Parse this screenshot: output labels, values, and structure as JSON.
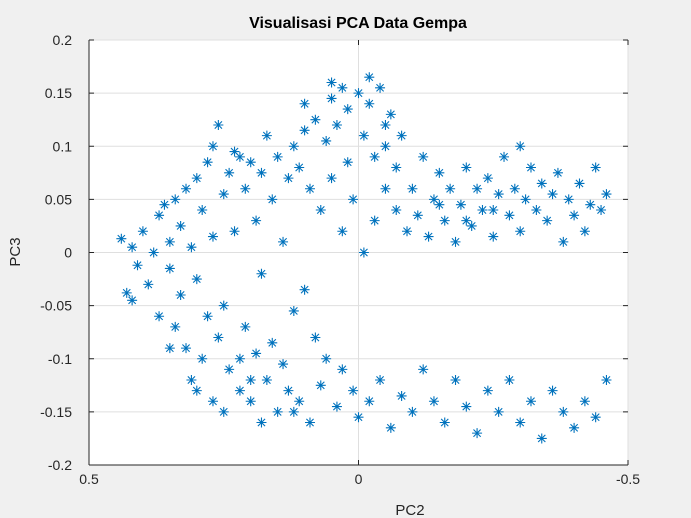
{
  "chart_data": {
    "type": "scatter",
    "title": "Visualisasi PCA Data Gempa",
    "xlabel": "PC2",
    "ylabel": "PC3",
    "xlim": [
      0.5,
      -0.5
    ],
    "x_reversed": true,
    "ylim": [
      -0.2,
      0.2
    ],
    "x_ticks": [
      0.5,
      0,
      -0.5
    ],
    "x_tick_labels": [
      "0.5",
      "0",
      "-0.5"
    ],
    "y_ticks": [
      -0.2,
      -0.15,
      -0.1,
      -0.05,
      0,
      0.05,
      0.1,
      0.15,
      0.2
    ],
    "y_tick_labels": [
      "-0.2",
      "-0.15",
      "-0.1",
      "-0.05",
      "0",
      "0.05",
      "0.1",
      "0.15",
      "0.2"
    ],
    "grid": true,
    "marker": "asterisk",
    "color": "#0072BD",
    "series": [
      {
        "points": [
          [
            0.44,
            0.013
          ],
          [
            0.43,
            -0.038
          ],
          [
            0.42,
            0.005
          ],
          [
            0.42,
            -0.045
          ],
          [
            0.41,
            -0.012
          ],
          [
            0.4,
            0.02
          ],
          [
            0.39,
            -0.03
          ],
          [
            0.38,
            0.0
          ],
          [
            0.37,
            0.035
          ],
          [
            0.37,
            -0.06
          ],
          [
            0.36,
            0.045
          ],
          [
            0.35,
            -0.015
          ],
          [
            0.35,
            0.01
          ],
          [
            0.34,
            -0.07
          ],
          [
            0.34,
            0.05
          ],
          [
            0.33,
            0.025
          ],
          [
            0.33,
            -0.04
          ],
          [
            0.32,
            0.06
          ],
          [
            0.32,
            -0.09
          ],
          [
            0.31,
            0.005
          ],
          [
            0.31,
            -0.12
          ],
          [
            0.3,
            0.07
          ],
          [
            0.3,
            -0.025
          ],
          [
            0.29,
            0.04
          ],
          [
            0.29,
            -0.1
          ],
          [
            0.28,
            0.085
          ],
          [
            0.28,
            -0.06
          ],
          [
            0.27,
            0.1
          ],
          [
            0.27,
            0.015
          ],
          [
            0.26,
            -0.08
          ],
          [
            0.26,
            0.12
          ],
          [
            0.25,
            0.055
          ],
          [
            0.25,
            -0.05
          ],
          [
            0.24,
            0.075
          ],
          [
            0.24,
            -0.11
          ],
          [
            0.23,
            0.095
          ],
          [
            0.23,
            0.02
          ],
          [
            0.22,
            -0.13
          ],
          [
            0.22,
            0.09
          ],
          [
            0.21,
            0.06
          ],
          [
            0.21,
            -0.07
          ],
          [
            0.2,
            0.085
          ],
          [
            0.2,
            -0.14
          ],
          [
            0.19,
            0.03
          ],
          [
            0.19,
            -0.095
          ],
          [
            0.18,
            0.075
          ],
          [
            0.18,
            -0.02
          ],
          [
            0.17,
            0.11
          ],
          [
            0.17,
            -0.12
          ],
          [
            0.16,
            0.05
          ],
          [
            0.16,
            -0.085
          ],
          [
            0.15,
            0.09
          ],
          [
            0.15,
            -0.15
          ],
          [
            0.14,
            0.01
          ],
          [
            0.14,
            -0.105
          ],
          [
            0.13,
            0.07
          ],
          [
            0.13,
            -0.13
          ],
          [
            0.12,
            0.1
          ],
          [
            0.12,
            -0.055
          ],
          [
            0.11,
            0.08
          ],
          [
            0.11,
            -0.14
          ],
          [
            0.1,
            0.115
          ],
          [
            0.1,
            -0.035
          ],
          [
            0.09,
            0.06
          ],
          [
            0.09,
            -0.16
          ],
          [
            0.08,
            0.125
          ],
          [
            0.08,
            -0.08
          ],
          [
            0.07,
            0.04
          ],
          [
            0.07,
            -0.125
          ],
          [
            0.06,
            0.105
          ],
          [
            0.06,
            -0.1
          ],
          [
            0.05,
            0.145
          ],
          [
            0.05,
            0.07
          ],
          [
            0.04,
            -0.145
          ],
          [
            0.04,
            0.12
          ],
          [
            0.03,
            0.02
          ],
          [
            0.03,
            -0.11
          ],
          [
            0.02,
            0.135
          ],
          [
            0.02,
            0.085
          ],
          [
            0.01,
            -0.13
          ],
          [
            0.01,
            0.05
          ],
          [
            0.0,
            0.15
          ],
          [
            0.0,
            -0.155
          ],
          [
            -0.01,
            0.11
          ],
          [
            -0.01,
            0.0
          ],
          [
            -0.02,
            0.14
          ],
          [
            -0.02,
            -0.14
          ],
          [
            -0.03,
            0.09
          ],
          [
            -0.03,
            0.03
          ],
          [
            -0.04,
            0.155
          ],
          [
            -0.04,
            -0.12
          ],
          [
            -0.05,
            0.06
          ],
          [
            -0.05,
            0.1
          ],
          [
            -0.06,
            0.13
          ],
          [
            -0.06,
            -0.165
          ],
          [
            -0.07,
            0.04
          ],
          [
            -0.07,
            0.08
          ],
          [
            -0.08,
            -0.135
          ],
          [
            -0.08,
            0.11
          ],
          [
            -0.09,
            0.02
          ],
          [
            -0.1,
            0.06
          ],
          [
            -0.1,
            -0.15
          ],
          [
            -0.11,
            0.035
          ],
          [
            -0.12,
            0.09
          ],
          [
            -0.12,
            -0.11
          ],
          [
            -0.13,
            0.015
          ],
          [
            -0.14,
            0.05
          ],
          [
            -0.14,
            -0.14
          ],
          [
            -0.15,
            0.075
          ],
          [
            -0.16,
            0.03
          ],
          [
            -0.16,
            -0.16
          ],
          [
            -0.17,
            0.06
          ],
          [
            -0.18,
            0.01
          ],
          [
            -0.18,
            -0.12
          ],
          [
            -0.19,
            0.045
          ],
          [
            -0.2,
            0.08
          ],
          [
            -0.2,
            -0.145
          ],
          [
            -0.21,
            0.025
          ],
          [
            -0.22,
            0.06
          ],
          [
            -0.22,
            -0.17
          ],
          [
            -0.23,
            0.04
          ],
          [
            -0.24,
            0.07
          ],
          [
            -0.24,
            -0.13
          ],
          [
            -0.25,
            0.015
          ],
          [
            -0.26,
            0.055
          ],
          [
            -0.26,
            -0.15
          ],
          [
            -0.27,
            0.09
          ],
          [
            -0.28,
            0.035
          ],
          [
            -0.28,
            -0.12
          ],
          [
            -0.29,
            0.06
          ],
          [
            -0.3,
            0.02
          ],
          [
            -0.3,
            -0.16
          ],
          [
            -0.31,
            0.05
          ],
          [
            -0.32,
            0.08
          ],
          [
            -0.32,
            -0.14
          ],
          [
            -0.33,
            0.04
          ],
          [
            -0.34,
            0.065
          ],
          [
            -0.34,
            -0.175
          ],
          [
            -0.35,
            0.03
          ],
          [
            -0.36,
            0.055
          ],
          [
            -0.36,
            -0.13
          ],
          [
            -0.37,
            0.075
          ],
          [
            -0.38,
            0.01
          ],
          [
            -0.38,
            -0.15
          ],
          [
            -0.39,
            0.05
          ],
          [
            -0.4,
            0.035
          ],
          [
            -0.4,
            -0.165
          ],
          [
            -0.41,
            0.065
          ],
          [
            -0.42,
            0.02
          ],
          [
            -0.42,
            -0.14
          ],
          [
            -0.43,
            0.045
          ],
          [
            -0.44,
            0.08
          ],
          [
            -0.44,
            -0.155
          ],
          [
            -0.45,
            0.04
          ],
          [
            -0.46,
            0.055
          ],
          [
            -0.46,
            -0.12
          ],
          [
            -0.3,
            0.1
          ],
          [
            -0.25,
            0.04
          ],
          [
            -0.2,
            0.03
          ],
          [
            -0.15,
            0.045
          ],
          [
            0.35,
            -0.09
          ],
          [
            0.3,
            -0.13
          ],
          [
            0.25,
            -0.15
          ],
          [
            0.2,
            -0.12
          ],
          [
            0.27,
            -0.14
          ],
          [
            0.22,
            -0.1
          ],
          [
            0.18,
            -0.16
          ],
          [
            0.12,
            -0.15
          ],
          [
            0.05,
            0.16
          ],
          [
            -0.05,
            0.12
          ],
          [
            0.1,
            0.14
          ],
          [
            0.03,
            0.155
          ],
          [
            -0.02,
            0.165
          ]
        ]
      }
    ]
  }
}
